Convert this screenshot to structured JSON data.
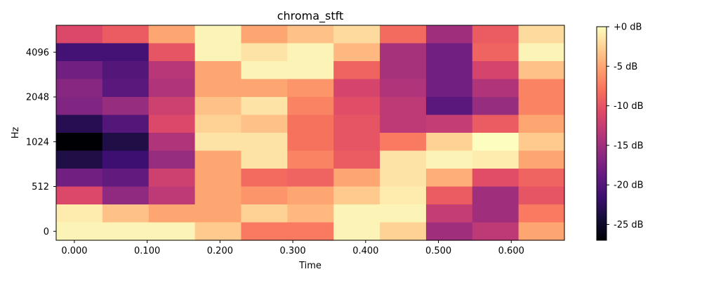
{
  "chart_data": {
    "type": "heatmap",
    "title": "chroma_stft",
    "xlabel": "Time",
    "ylabel": "Hz",
    "x_ticks": [
      "0.000",
      "0.100",
      "0.200",
      "0.300",
      "0.400",
      "0.500",
      "0.600"
    ],
    "x_tick_values": [
      0.0,
      0.1,
      0.2,
      0.3,
      0.4,
      0.5,
      0.6
    ],
    "y_ticks": [
      "0",
      "512",
      "1024",
      "2048",
      "4096"
    ],
    "xlim": [
      -0.025,
      0.673
    ],
    "n_columns": 11,
    "n_rows": 12,
    "column_step": 0.0635,
    "colorbar": {
      "colormap": "magma",
      "range": [
        -27,
        0
      ],
      "tick_labels": [
        "+0 dB",
        "-5 dB",
        "-10 dB",
        "-15 dB",
        "-20 dB",
        "-25 dB"
      ],
      "tick_values": [
        0,
        -5,
        -10,
        -15,
        -20,
        -25
      ]
    },
    "values_db_rows_top_to_bottom": [
      [
        -11,
        -9.5,
        -5,
        -0.5,
        -5,
        -3.5,
        -2,
        -8.5,
        -15,
        -9.5,
        -2
      ],
      [
        -21,
        -21,
        -10,
        -0.5,
        -1.5,
        -0.5,
        -4,
        -14.5,
        -18,
        -9,
        -0.5
      ],
      [
        -18,
        -20,
        -13.5,
        -5,
        -0.5,
        -0.5,
        -9,
        -14.5,
        -18,
        -11.5,
        -3.5
      ],
      [
        -16.5,
        -19.5,
        -14,
        -5,
        -5,
        -6,
        -11.5,
        -14,
        -18,
        -14,
        -7
      ],
      [
        -17,
        -15.5,
        -12,
        -3.5,
        -1.5,
        -7,
        -10.5,
        -13,
        -19.5,
        -15.5,
        -7
      ],
      [
        -23,
        -20,
        -11,
        -2.5,
        -3.5,
        -8,
        -10,
        -13,
        -12.5,
        -9.5,
        -5
      ],
      [
        -27,
        -23.5,
        -14,
        -1.5,
        -1.5,
        -8,
        -10,
        -7.5,
        -2.5,
        0,
        -3
      ],
      [
        -23.5,
        -21.5,
        -15.5,
        -5,
        -1.5,
        -7,
        -9.5,
        -1.5,
        -0.5,
        -1,
        -5
      ],
      [
        -18,
        -19,
        -12,
        -5,
        -8.5,
        -9,
        -5,
        -1.5,
        -4.5,
        -10.5,
        -9
      ],
      [
        -11,
        -16,
        -13,
        -5,
        -6,
        -5,
        -3,
        -1,
        -9.5,
        -15,
        -10
      ],
      [
        -1,
        -3.5,
        -5,
        -5,
        -2.5,
        -4,
        -0.5,
        -0.5,
        -12.5,
        -15,
        -7.5
      ],
      [
        -0.5,
        -0.5,
        -0.5,
        -3,
        -7.5,
        -7.5,
        -0.5,
        -2.5,
        -15,
        -13,
        -5
      ]
    ]
  }
}
